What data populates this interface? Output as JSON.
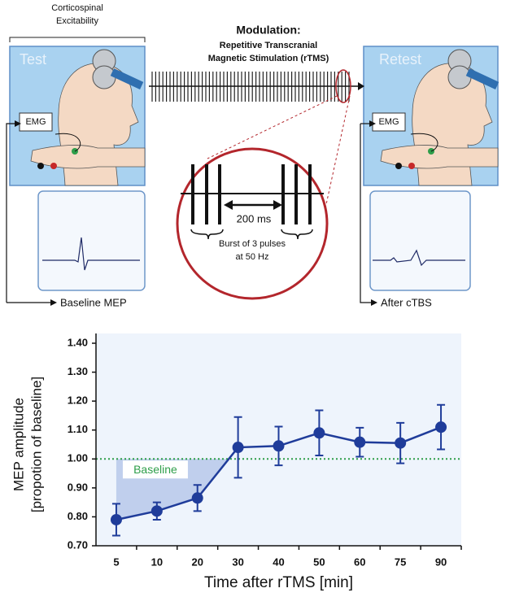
{
  "diagram": {
    "bracket_label": [
      "Corticospinal",
      "Excitability"
    ],
    "test_label": "Test",
    "retest_label": "Retest",
    "emg_left": "EMG",
    "emg_right": "EMG",
    "modulation_title": "Modulation:",
    "modulation_subtitle": [
      "Repetitive Transcranial",
      "Magnetic Stimulation (rTMS)"
    ],
    "interval_label": "200 ms",
    "burst_label": [
      "Burst of 3 pulses",
      "at 50 Hz"
    ],
    "baseline_trace_label": "Baseline MEP",
    "after_trace_label": "After cTBS"
  },
  "chart_data": {
    "type": "line",
    "categories": [
      "5",
      "10",
      "20",
      "30",
      "40",
      "50",
      "60",
      "75",
      "90"
    ],
    "values": [
      0.79,
      0.82,
      0.865,
      1.04,
      1.045,
      1.09,
      1.058,
      1.055,
      1.11
    ],
    "errors": [
      0.055,
      0.03,
      0.045,
      0.105,
      0.067,
      0.078,
      0.05,
      0.07,
      0.077
    ],
    "color": "#1f3c9a",
    "area_color": "#b7c8ea",
    "ylim": [
      0.7,
      1.4
    ],
    "yticks": [
      {
        "value": 0.7,
        "label": "0.70"
      },
      {
        "value": 0.8,
        "label": "0.80"
      },
      {
        "value": 0.9,
        "label": "0.90"
      },
      {
        "value": 1.0,
        "label": "1.00"
      },
      {
        "value": 1.1,
        "label": "1.10"
      },
      {
        "value": 1.2,
        "label": "1.20"
      },
      {
        "value": 1.3,
        "label": "1.30"
      },
      {
        "value": 1.4,
        "label": "1.40"
      }
    ],
    "xlabel": "Time after rTMS [min]",
    "ylabel": [
      "MEP amplitude",
      "[propotion of baseline]"
    ],
    "reference_line": {
      "value": 1.0,
      "label": "Baseline",
      "color": "#2e9e4a"
    }
  }
}
